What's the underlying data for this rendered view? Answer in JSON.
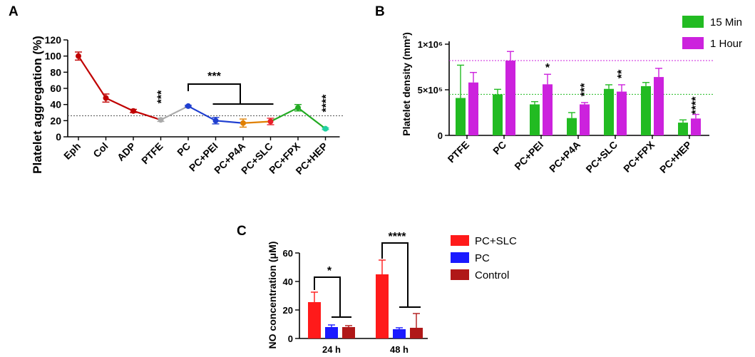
{
  "chart_data": [
    {
      "panel": "A",
      "type": "line",
      "title": "",
      "xlabel": "",
      "ylabel": "Platelet aggregation (%)",
      "ylim": [
        0,
        120
      ],
      "yticks": [
        0,
        20,
        40,
        60,
        80,
        100,
        120
      ],
      "categories": [
        "Eph",
        "Col",
        "ADP",
        "PTFE",
        "PC",
        "PC+PEI",
        "PC+P4A",
        "PC+SLC",
        "PC+FPX",
        "PC+HEP"
      ],
      "values": [
        100,
        48,
        32,
        21,
        38,
        20,
        17,
        19,
        36,
        10
      ],
      "errors": [
        5,
        5,
        2,
        2,
        1,
        4,
        5,
        4,
        4,
        1
      ],
      "point_colors": [
        "#c00000",
        "#c00000",
        "#c00000",
        "#aaaaaa",
        "#1f3fd0",
        "#1f3fd0",
        "#e08000",
        "#e8202a",
        "#22aa22",
        "#20d0a0"
      ],
      "reference_line": 26,
      "annotations": [
        {
          "text": "***",
          "category": "PTFE"
        },
        {
          "text": "***",
          "category": "PC+P4A",
          "bracket": true
        },
        {
          "text": "****",
          "category": "PC+HEP"
        }
      ]
    },
    {
      "panel": "B",
      "type": "bar",
      "title": "",
      "xlabel": "",
      "ylabel": "Platelet density (mm²)",
      "ylim": [
        0,
        1000000
      ],
      "ytick_values": [
        0,
        500000,
        1000000
      ],
      "ytick_labels": [
        "0",
        "5×10⁵",
        "1×10⁶"
      ],
      "categories": [
        "PTFE",
        "PC",
        "PC+PEI",
        "PC+P4A",
        "PC+SLC",
        "PC+FPX",
        "PC+HEP"
      ],
      "series": [
        {
          "name": "15 Min",
          "color": "#22bb22",
          "values": [
            410000,
            450000,
            340000,
            190000,
            510000,
            540000,
            140000
          ],
          "errors": [
            360000,
            55000,
            30000,
            60000,
            45000,
            40000,
            30000
          ]
        },
        {
          "name": "1 Hour",
          "color": "#cc22dd",
          "values": [
            580000,
            820000,
            560000,
            340000,
            480000,
            640000,
            185000
          ],
          "errors": [
            110000,
            100000,
            110000,
            20000,
            75000,
            95000,
            45000
          ]
        }
      ],
      "reference_lines": [
        {
          "value": 820000,
          "color": "#cc22dd"
        },
        {
          "value": 450000,
          "color": "#22bb22"
        }
      ],
      "annotations": [
        {
          "text": "*",
          "category": "PC+PEI"
        },
        {
          "text": "***",
          "category": "PC+P4A"
        },
        {
          "text": "**",
          "category": "PC+SLC"
        },
        {
          "text": "****",
          "category": "PC+HEP"
        }
      ]
    },
    {
      "panel": "C",
      "type": "bar",
      "title": "",
      "xlabel": "",
      "ylabel": "NO concentration (μM)",
      "ylim": [
        0,
        60
      ],
      "yticks": [
        0,
        20,
        40,
        60
      ],
      "categories": [
        "24 h",
        "48 h"
      ],
      "series": [
        {
          "name": "PC+SLC",
          "color": "#ff1a1a",
          "values": [
            25.5,
            45
          ],
          "errors": [
            7,
            10
          ]
        },
        {
          "name": "PC",
          "color": "#1a1aff",
          "values": [
            8,
            6.5
          ],
          "errors": [
            1.5,
            1
          ]
        },
        {
          "name": "Control",
          "color": "#b01818",
          "values": [
            8,
            7.5
          ],
          "errors": [
            1,
            10
          ]
        }
      ],
      "annotations": [
        {
          "text": "*",
          "category": "24 h"
        },
        {
          "text": "****",
          "category": "48 h"
        }
      ]
    }
  ],
  "panel_labels": {
    "a": "A",
    "b": "B",
    "c": "C"
  }
}
